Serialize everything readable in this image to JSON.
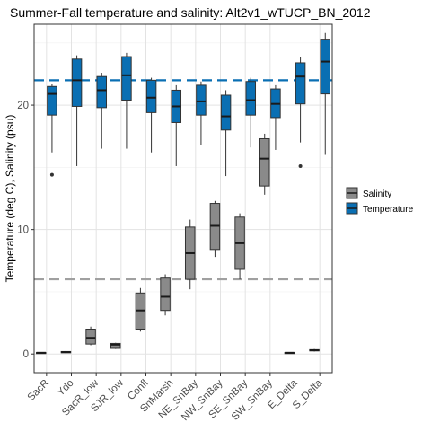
{
  "chart_data": {
    "type": "boxplot",
    "title": "Summer-Fall temperature and salinity: Alt2v1_wTUCP_BN_2012",
    "xlabel": "",
    "ylabel": "Temperature (deg C), Salinity (psu)",
    "ylim": [
      -1.5,
      26.5
    ],
    "yticks": [
      0,
      10,
      20
    ],
    "grid": true,
    "legend_position": "right",
    "categories": [
      "SacR",
      "Ydo",
      "SacR_low",
      "SJR_low",
      "Confl",
      "SnMarsh",
      "NE_SnBay",
      "NW_SnBay",
      "SE_SnBay",
      "SW_SnBay",
      "E_Delta",
      "S_Delta"
    ],
    "series": [
      {
        "name": "Salinity",
        "color": "#8a8a8a",
        "boxes": [
          {
            "category": "SacR",
            "min": 0.05,
            "q1": 0.05,
            "median": 0.1,
            "q3": 0.12,
            "max": 0.15,
            "outliers": []
          },
          {
            "category": "Ydo",
            "min": 0.05,
            "q1": 0.1,
            "median": 0.15,
            "q3": 0.2,
            "max": 0.25,
            "outliers": []
          },
          {
            "category": "SacR_low",
            "min": 0.7,
            "q1": 0.8,
            "median": 1.3,
            "q3": 2.0,
            "max": 2.2,
            "outliers": []
          },
          {
            "category": "SJR_low",
            "min": 0.4,
            "q1": 0.45,
            "median": 0.75,
            "q3": 0.85,
            "max": 0.9,
            "outliers": []
          },
          {
            "category": "Confl",
            "min": 1.8,
            "q1": 2.0,
            "median": 3.5,
            "q3": 4.9,
            "max": 5.3,
            "outliers": []
          },
          {
            "category": "SnMarsh",
            "min": 3.1,
            "q1": 3.5,
            "median": 4.6,
            "q3": 6.1,
            "max": 6.4,
            "outliers": []
          },
          {
            "category": "NE_SnBay",
            "min": 5.2,
            "q1": 6.0,
            "median": 8.1,
            "q3": 10.2,
            "max": 10.8,
            "outliers": []
          },
          {
            "category": "NW_SnBay",
            "min": 7.8,
            "q1": 8.4,
            "median": 10.3,
            "q3": 12.1,
            "max": 12.3,
            "outliers": []
          },
          {
            "category": "SE_SnBay",
            "min": 6.0,
            "q1": 6.8,
            "median": 8.9,
            "q3": 11.0,
            "max": 11.3,
            "outliers": []
          },
          {
            "category": "SW_SnBay",
            "min": 12.8,
            "q1": 13.5,
            "median": 15.7,
            "q3": 17.3,
            "max": 17.7,
            "outliers": []
          },
          {
            "category": "E_Delta",
            "min": 0.05,
            "q1": 0.05,
            "median": 0.1,
            "q3": 0.12,
            "max": 0.15,
            "outliers": []
          },
          {
            "category": "S_Delta",
            "min": 0.2,
            "q1": 0.25,
            "median": 0.3,
            "q3": 0.35,
            "max": 0.4,
            "outliers": []
          }
        ]
      },
      {
        "name": "Temperature",
        "color": "#0a6fb3",
        "boxes": [
          {
            "category": "SacR",
            "min": 16.2,
            "q1": 19.2,
            "median": 20.9,
            "q3": 21.5,
            "max": 21.7,
            "outliers": [
              14.4
            ]
          },
          {
            "category": "Ydo",
            "min": 15.1,
            "q1": 19.9,
            "median": 22.0,
            "q3": 23.7,
            "max": 24.0,
            "outliers": []
          },
          {
            "category": "SacR_low",
            "min": 16.5,
            "q1": 19.8,
            "median": 21.2,
            "q3": 22.3,
            "max": 22.6,
            "outliers": []
          },
          {
            "category": "SJR_low",
            "min": 16.5,
            "q1": 20.4,
            "median": 22.4,
            "q3": 23.9,
            "max": 24.2,
            "outliers": []
          },
          {
            "category": "Confl",
            "min": 16.2,
            "q1": 19.4,
            "median": 20.6,
            "q3": 22.0,
            "max": 22.2,
            "outliers": []
          },
          {
            "category": "SnMarsh",
            "min": 15.1,
            "q1": 18.6,
            "median": 19.9,
            "q3": 21.2,
            "max": 21.6,
            "outliers": []
          },
          {
            "category": "NE_SnBay",
            "min": 16.8,
            "q1": 19.2,
            "median": 20.3,
            "q3": 21.6,
            "max": 21.9,
            "outliers": []
          },
          {
            "category": "NW_SnBay",
            "min": 14.3,
            "q1": 18.0,
            "median": 19.1,
            "q3": 20.8,
            "max": 21.2,
            "outliers": []
          },
          {
            "category": "SE_SnBay",
            "min": 16.6,
            "q1": 19.2,
            "median": 20.4,
            "q3": 21.9,
            "max": 22.2,
            "outliers": []
          },
          {
            "category": "SW_SnBay",
            "min": 16.4,
            "q1": 19.0,
            "median": 20.1,
            "q3": 21.3,
            "max": 21.6,
            "outliers": []
          },
          {
            "category": "E_Delta",
            "min": 17.0,
            "q1": 20.1,
            "median": 22.3,
            "q3": 23.4,
            "max": 23.9,
            "outliers": [
              15.1
            ]
          },
          {
            "category": "S_Delta",
            "min": 16.0,
            "q1": 20.9,
            "median": 23.5,
            "q3": 25.3,
            "max": 25.8,
            "outliers": []
          }
        ]
      }
    ],
    "reference_lines": [
      {
        "value": 22.0,
        "color": "#0a6fb3",
        "style": "dashed"
      },
      {
        "value": 6.0,
        "color": "#a0a0a0",
        "style": "dashed"
      }
    ]
  }
}
